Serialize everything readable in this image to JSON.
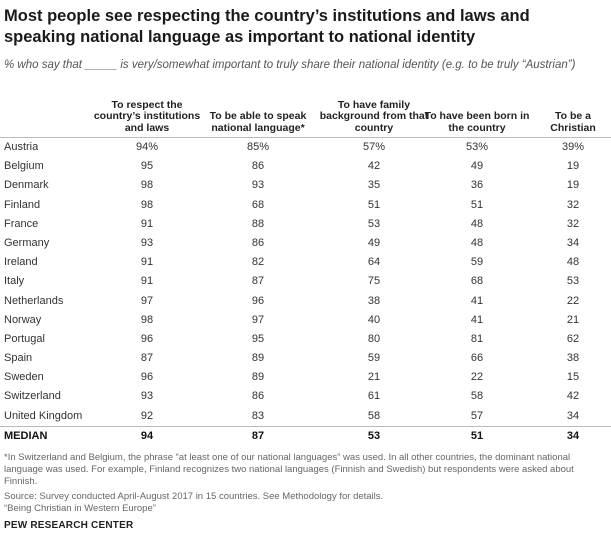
{
  "chart_data": {
    "type": "table",
    "title": "Most people see respecting the country’s institutions and laws and speaking national language as important to national identity",
    "subtitle": "% who say that _____ is very/somewhat important to truly share their national identity (e.g. to be truly “Austrian”)",
    "columns": [
      "To respect the country’s institutions and laws",
      "To be able to speak national language*",
      "To have family background from that country",
      "To have been born in the country",
      "To be a Christian"
    ],
    "rows": [
      {
        "country": "Austria",
        "values": [
          "94%",
          "85%",
          "57%",
          "53%",
          "39%"
        ]
      },
      {
        "country": "Belgium",
        "values": [
          "95",
          "86",
          "42",
          "49",
          "19"
        ]
      },
      {
        "country": "Denmark",
        "values": [
          "98",
          "93",
          "35",
          "36",
          "19"
        ]
      },
      {
        "country": "Finland",
        "values": [
          "98",
          "68",
          "51",
          "51",
          "32"
        ]
      },
      {
        "country": "France",
        "values": [
          "91",
          "88",
          "53",
          "48",
          "32"
        ]
      },
      {
        "country": "Germany",
        "values": [
          "93",
          "86",
          "49",
          "48",
          "34"
        ]
      },
      {
        "country": "Ireland",
        "values": [
          "91",
          "82",
          "64",
          "59",
          "48"
        ]
      },
      {
        "country": "Italy",
        "values": [
          "91",
          "87",
          "75",
          "68",
          "53"
        ]
      },
      {
        "country": "Netherlands",
        "values": [
          "97",
          "96",
          "38",
          "41",
          "22"
        ]
      },
      {
        "country": "Norway",
        "values": [
          "98",
          "97",
          "40",
          "41",
          "21"
        ]
      },
      {
        "country": "Portugal",
        "values": [
          "96",
          "95",
          "80",
          "81",
          "62"
        ]
      },
      {
        "country": "Spain",
        "values": [
          "87",
          "89",
          "59",
          "66",
          "38"
        ]
      },
      {
        "country": "Sweden",
        "values": [
          "96",
          "89",
          "21",
          "22",
          "15"
        ]
      },
      {
        "country": "Switzerland",
        "values": [
          "93",
          "86",
          "61",
          "58",
          "42"
        ]
      },
      {
        "country": "United Kingdom",
        "values": [
          "92",
          "83",
          "58",
          "57",
          "34"
        ]
      }
    ],
    "median": {
      "label": "MEDIAN",
      "values": [
        "94",
        "87",
        "53",
        "51",
        "34"
      ]
    }
  },
  "footnote": "*In Switzerland and Belgium, the phrase “at least one of our national languages” was used. In all other countries, the dominant national language was used. For example, Finland recognizes two national languages (Finnish and Swedish) but respondents were asked about Finnish.",
  "source": "Source: Survey conducted April-August 2017 in 15 countries. See Methodology for details.",
  "report": "“Being Christian in Western Europe”",
  "brand": "PEW RESEARCH CENTER"
}
